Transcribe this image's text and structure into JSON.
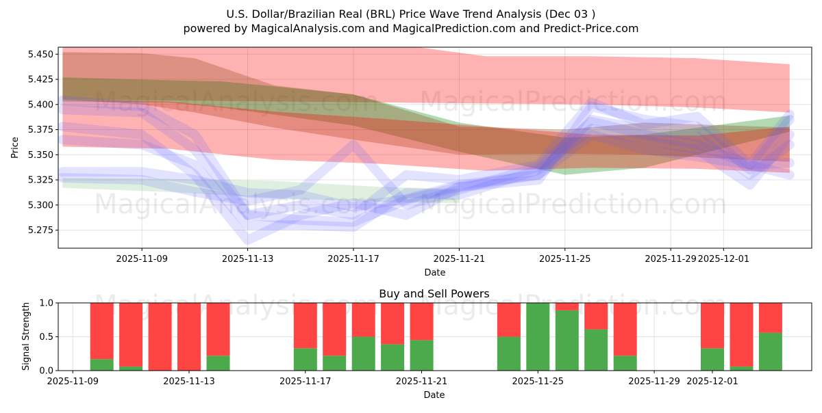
{
  "title_line1": "U.S. Dollar/Brazilian Real (BRL) Price Wave Trend Analysis (Dec 03 )",
  "title_line2": "powered by MagicalAnalysis.com and MagicalPrediction.com and Predict-Price.com",
  "watermarks": [
    "MagicalAnalysis.com",
    "MagicalPrediction.com"
  ],
  "chart_data": [
    {
      "type": "area",
      "title": "",
      "xlabel": "Date",
      "ylabel": "Price",
      "xlim": [
        "2025-11-05T20:00",
        "2025-12-04T08:00"
      ],
      "ylim": [
        5.257,
        5.457
      ],
      "x_ticks": [
        "2025-11-09",
        "2025-11-13",
        "2025-11-17",
        "2025-11-21",
        "2025-11-25",
        "2025-11-29",
        "2025-12-01"
      ],
      "y_ticks": [
        5.275,
        5.3,
        5.325,
        5.35,
        5.375,
        5.4,
        5.425,
        5.45
      ],
      "grid": true,
      "bands": [
        {
          "name": "red-upper",
          "color": "#ff0000",
          "opacity": 0.3,
          "x": [
            "2025-11-06",
            "2025-11-10",
            "2025-11-14",
            "2025-11-18",
            "2025-11-22",
            "2025-11-26",
            "2025-11-30",
            "2025-12-03T12:00"
          ],
          "upper": [
            5.462,
            5.462,
            5.462,
            5.462,
            5.448,
            5.448,
            5.446,
            5.44
          ],
          "lower": [
            5.405,
            5.404,
            5.403,
            5.402,
            5.401,
            5.4,
            5.397,
            5.392
          ]
        },
        {
          "name": "green-upper",
          "color": "#008000",
          "opacity": 0.3,
          "x": [
            "2025-11-06",
            "2025-11-10",
            "2025-11-12",
            "2025-11-14",
            "2025-11-17",
            "2025-11-21",
            "2025-11-25",
            "2025-11-28",
            "2025-12-03T12:00"
          ],
          "upper": [
            5.427,
            5.424,
            5.423,
            5.418,
            5.41,
            5.382,
            5.367,
            5.37,
            5.389
          ],
          "lower": [
            5.403,
            5.402,
            5.397,
            5.39,
            5.379,
            5.353,
            5.33,
            5.337,
            5.373
          ]
        },
        {
          "name": "brown-upper",
          "color": "#8b4513",
          "opacity": 0.3,
          "x": [
            "2025-11-06",
            "2025-11-09",
            "2025-11-11",
            "2025-11-14",
            "2025-11-17",
            "2025-11-21",
            "2025-11-25",
            "2025-11-28",
            "2025-12-03T12:00"
          ],
          "upper": [
            5.452,
            5.451,
            5.446,
            5.419,
            5.41,
            5.378,
            5.375,
            5.382,
            5.377
          ],
          "lower": [
            5.405,
            5.4,
            5.392,
            5.377,
            5.365,
            5.35,
            5.351,
            5.35,
            5.343
          ]
        },
        {
          "name": "red-lower",
          "color": "#ff0000",
          "opacity": 0.3,
          "x": [
            "2025-11-06",
            "2025-11-10",
            "2025-11-14",
            "2025-11-18",
            "2025-11-22",
            "2025-11-26",
            "2025-11-30",
            "2025-12-03T12:00"
          ],
          "upper": [
            5.405,
            5.403,
            5.393,
            5.386,
            5.378,
            5.37,
            5.369,
            5.378
          ],
          "lower": [
            5.358,
            5.356,
            5.345,
            5.341,
            5.334,
            5.337,
            5.336,
            5.332
          ]
        },
        {
          "name": "green-lower",
          "color": "#008000",
          "opacity": 0.12,
          "x": [
            "2025-11-06",
            "2025-11-10",
            "2025-11-14",
            "2025-11-18",
            "2025-11-21"
          ],
          "upper": [
            5.327,
            5.326,
            5.324,
            5.318,
            5.316
          ],
          "lower": [
            5.317,
            5.313,
            5.307,
            5.303,
            5.302
          ]
        }
      ],
      "wave_lines": [
        {
          "x": [
            "2025-11-06",
            "2025-11-09",
            "2025-11-11",
            "2025-11-13",
            "2025-11-15",
            "2025-11-17",
            "2025-11-19",
            "2025-11-21",
            "2025-11-24",
            "2025-11-26",
            "2025-11-28",
            "2025-11-30",
            "2025-12-02",
            "2025-12-03T12:00"
          ],
          "y": [
            5.395,
            5.392,
            5.355,
            5.29,
            5.285,
            5.283,
            5.305,
            5.318,
            5.325,
            5.398,
            5.385,
            5.378,
            5.335,
            5.385
          ]
        },
        {
          "x": [
            "2025-11-06",
            "2025-11-09",
            "2025-11-11",
            "2025-11-13",
            "2025-11-15",
            "2025-11-17",
            "2025-11-19",
            "2025-11-21",
            "2025-11-24",
            "2025-11-26",
            "2025-11-28",
            "2025-11-30",
            "2025-12-02",
            "2025-12-03T12:00"
          ],
          "y": [
            5.378,
            5.37,
            5.33,
            5.265,
            5.29,
            5.302,
            5.29,
            5.318,
            5.33,
            5.385,
            5.375,
            5.368,
            5.33,
            5.36
          ]
        },
        {
          "x": [
            "2025-11-06",
            "2025-11-09",
            "2025-11-11",
            "2025-11-13",
            "2025-11-15",
            "2025-11-17",
            "2025-11-19",
            "2025-11-21",
            "2025-11-24",
            "2025-11-26",
            "2025-11-28",
            "2025-11-30",
            "2025-12-02",
            "2025-12-03T12:00"
          ],
          "y": [
            5.365,
            5.36,
            5.34,
            5.28,
            5.28,
            5.278,
            5.312,
            5.31,
            5.335,
            5.376,
            5.365,
            5.355,
            5.32,
            5.37
          ]
        },
        {
          "x": [
            "2025-11-06",
            "2025-11-09",
            "2025-11-11",
            "2025-11-13",
            "2025-11-15",
            "2025-11-17",
            "2025-11-19",
            "2025-11-21",
            "2025-11-24",
            "2025-11-26",
            "2025-11-28",
            "2025-11-30",
            "2025-12-02",
            "2025-12-03T12:00"
          ],
          "y": [
            5.333,
            5.333,
            5.325,
            5.312,
            5.31,
            5.298,
            5.306,
            5.32,
            5.33,
            5.37,
            5.355,
            5.348,
            5.34,
            5.342
          ]
        },
        {
          "x": [
            "2025-11-06",
            "2025-11-09",
            "2025-11-11",
            "2025-11-13",
            "2025-11-15",
            "2025-11-17",
            "2025-11-19",
            "2025-11-21",
            "2025-11-24",
            "2025-11-26",
            "2025-11-28",
            "2025-11-30",
            "2025-12-02",
            "2025-12-03T12:00"
          ],
          "y": [
            5.327,
            5.325,
            5.313,
            5.304,
            5.315,
            5.36,
            5.3,
            5.315,
            5.338,
            5.383,
            5.37,
            5.36,
            5.34,
            5.33
          ]
        },
        {
          "x": [
            "2025-11-06",
            "2025-11-09",
            "2025-11-11",
            "2025-11-13",
            "2025-11-15",
            "2025-11-17",
            "2025-11-19",
            "2025-11-21",
            "2025-11-24",
            "2025-11-26",
            "2025-11-28",
            "2025-11-30",
            "2025-12-02",
            "2025-12-03T12:00"
          ],
          "y": [
            5.404,
            5.398,
            5.37,
            5.29,
            5.3,
            5.29,
            5.33,
            5.325,
            5.34,
            5.402,
            5.38,
            5.388,
            5.34,
            5.39
          ]
        }
      ]
    },
    {
      "type": "bar",
      "title": "Buy and Sell Powers",
      "xlabel": "Date",
      "ylabel": "Signal Strength",
      "xlim": [
        "2025-11-08T12:00",
        "2025-12-04T10:00"
      ],
      "ylim": [
        0,
        1
      ],
      "y_ticks": [
        0.0,
        0.5,
        1.0
      ],
      "x_ticks": [
        "2025-11-09",
        "2025-11-13",
        "2025-11-17",
        "2025-11-21",
        "2025-11-25",
        "2025-11-29",
        "2025-12-01"
      ],
      "categories": [
        "2025-11-10",
        "2025-11-11",
        "2025-11-12",
        "2025-11-13",
        "2025-11-14",
        "2025-11-17",
        "2025-11-18",
        "2025-11-19",
        "2025-11-20",
        "2025-11-21",
        "2025-11-24",
        "2025-11-25",
        "2025-11-26",
        "2025-11-27",
        "2025-11-28",
        "2025-12-01",
        "2025-12-02",
        "2025-12-03"
      ],
      "series": [
        {
          "name": "Buy",
          "color": "#4caa4c",
          "values": [
            0.17,
            0.06,
            0.0,
            0.0,
            0.22,
            0.33,
            0.22,
            0.5,
            0.39,
            0.45,
            0.5,
            1.0,
            0.89,
            0.61,
            0.22,
            0.33,
            0.06,
            0.56
          ]
        },
        {
          "name": "Sell",
          "color": "#ff4444",
          "values": [
            0.83,
            0.94,
            1.0,
            1.0,
            0.78,
            0.67,
            0.78,
            0.5,
            0.61,
            0.55,
            0.5,
            0.0,
            0.11,
            0.39,
            0.78,
            0.67,
            0.94,
            0.44
          ]
        }
      ],
      "grid": true
    }
  ]
}
